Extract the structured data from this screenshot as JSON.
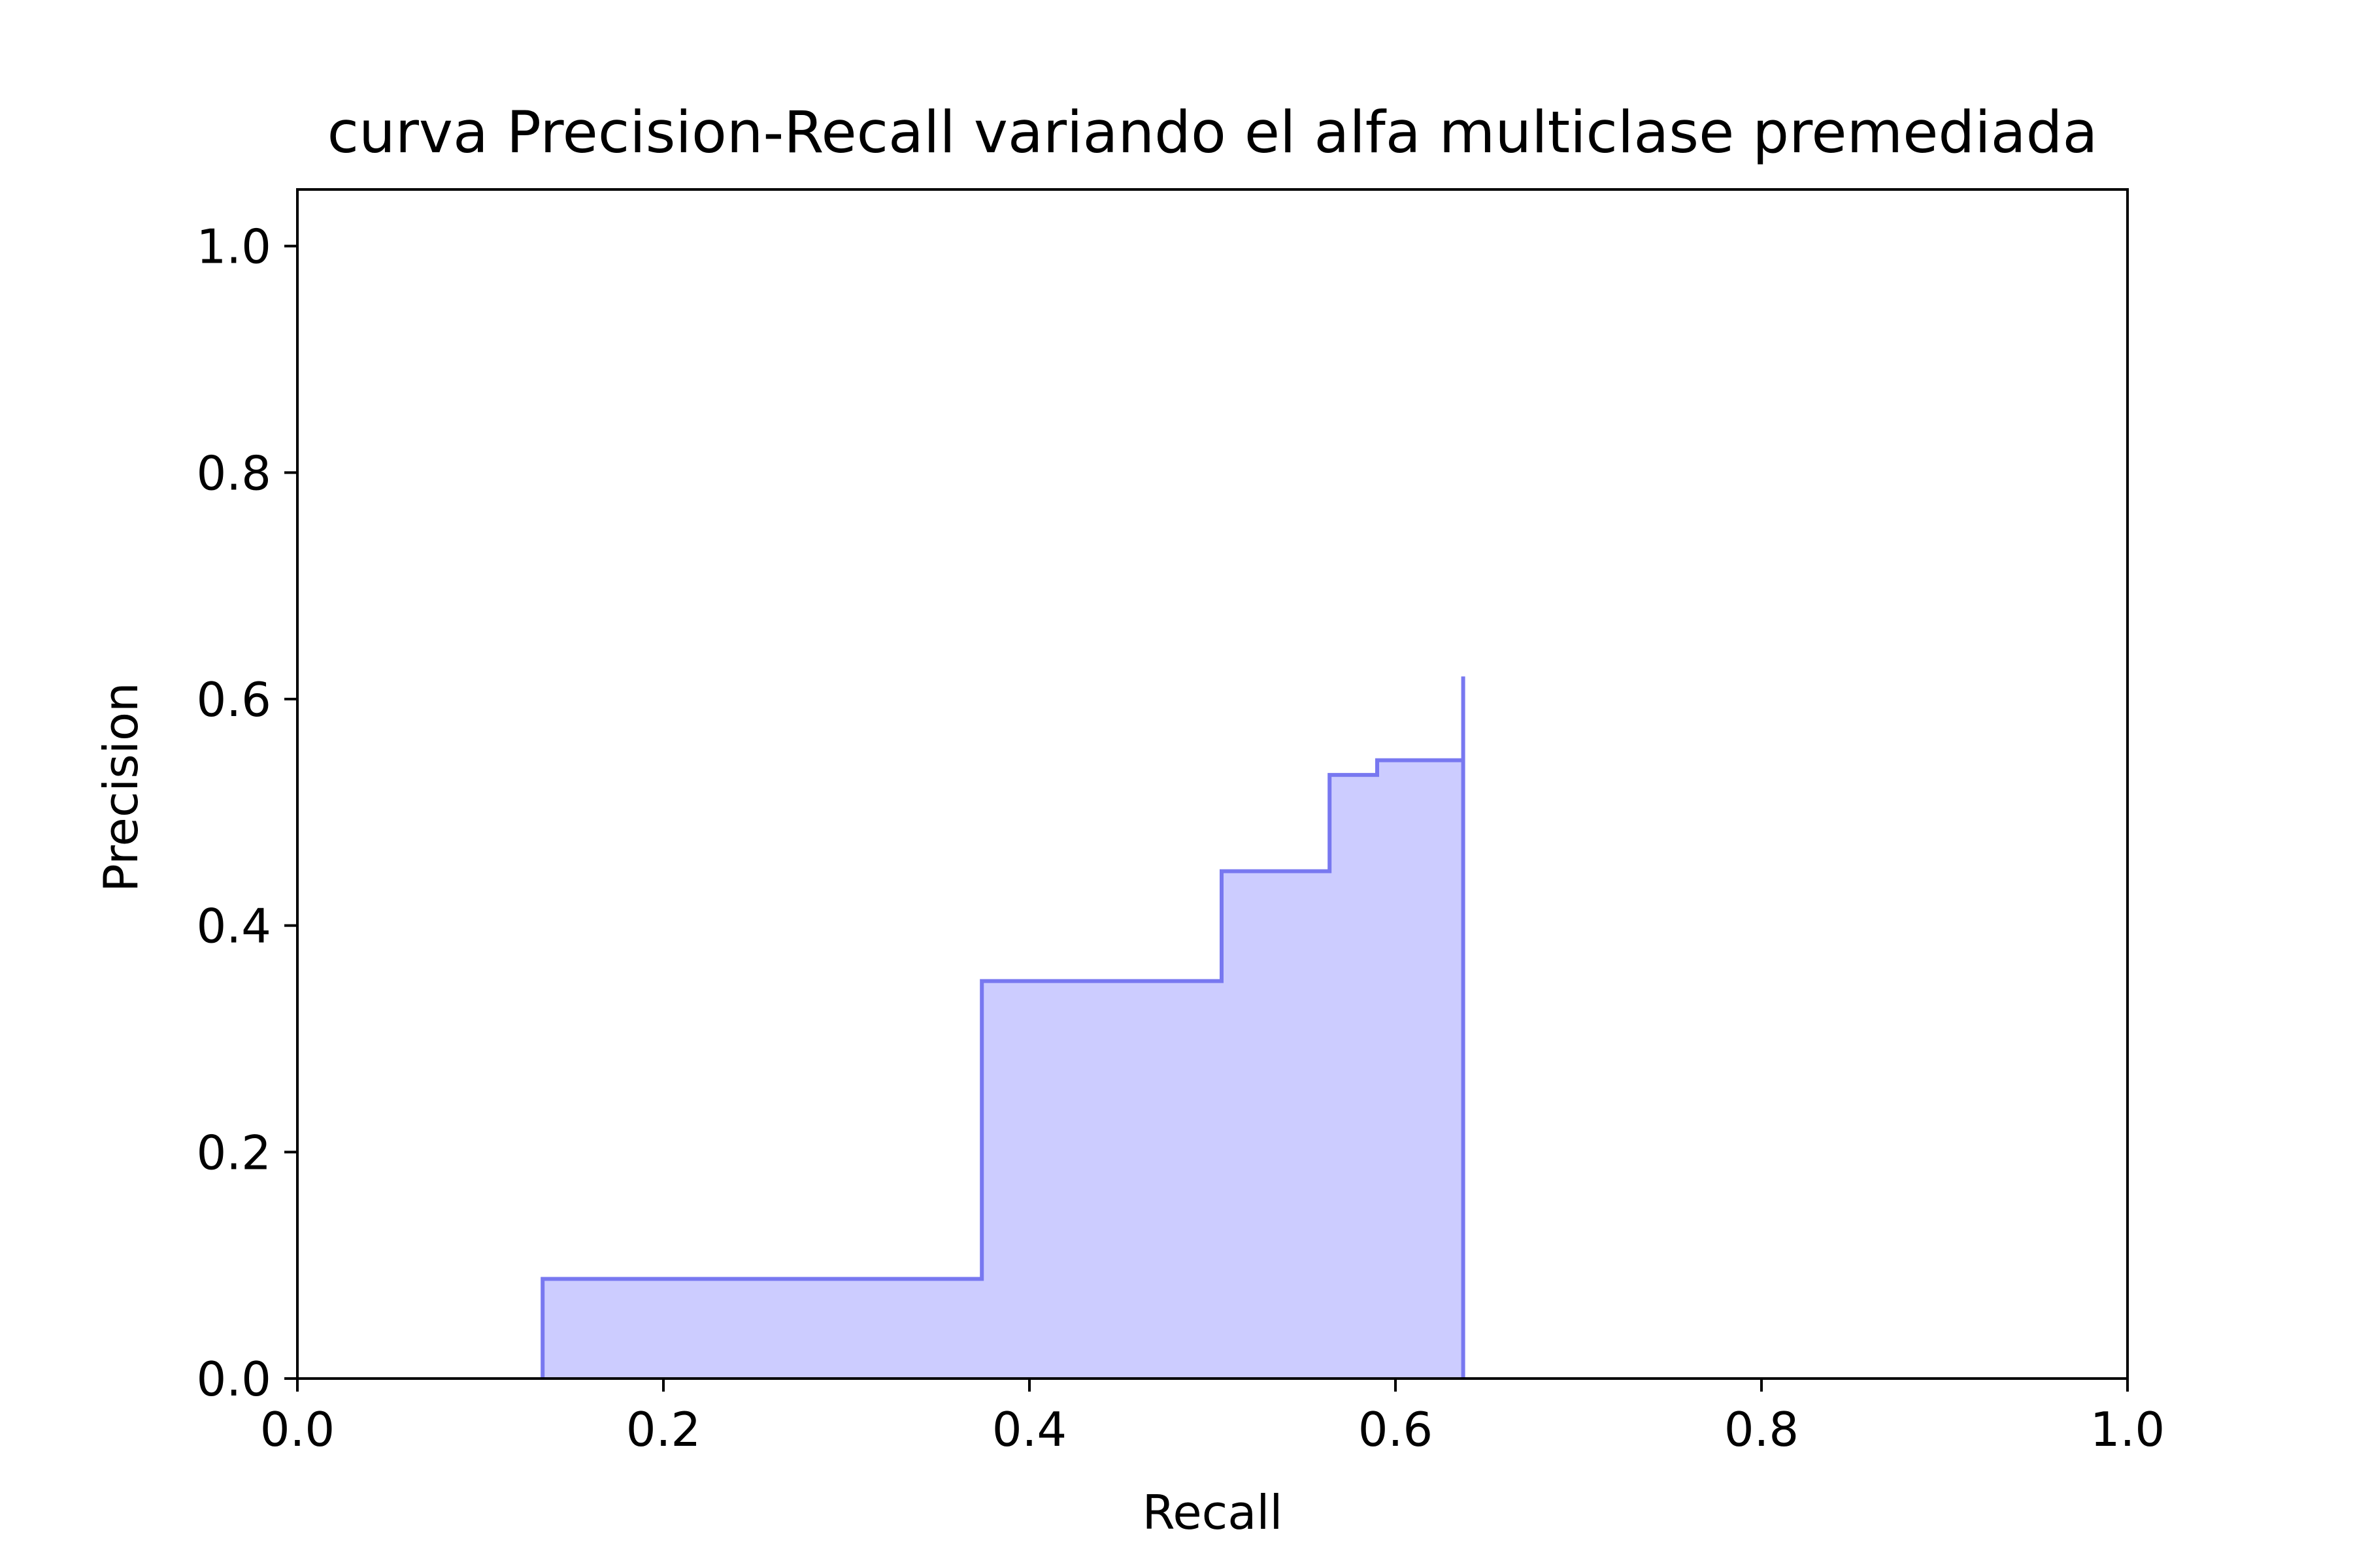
{
  "chart_data": {
    "type": "area",
    "title": "curva Precision-Recall variando el alfa multiclase premediada",
    "xlabel": "Recall",
    "ylabel": "Precision",
    "xlim": [
      0.0,
      1.0
    ],
    "ylim": [
      0.0,
      1.05
    ],
    "xticks": [
      "0.0",
      "0.2",
      "0.4",
      "0.6",
      "0.8",
      "1.0"
    ],
    "yticks": [
      "0.0",
      "0.2",
      "0.4",
      "0.6",
      "0.8",
      "1.0"
    ],
    "grid": false,
    "step": "post",
    "series": [
      {
        "recall": [
          0.134,
          0.134,
          0.374,
          0.374,
          0.505,
          0.505,
          0.564,
          0.564,
          0.59,
          0.59,
          0.637,
          0.637,
          0.637
        ],
        "precision": [
          0.0,
          0.088,
          0.088,
          0.351,
          0.351,
          0.448,
          0.448,
          0.533,
          0.533,
          0.546,
          0.546,
          0.62,
          0.0
        ],
        "line_color": "#7878f0",
        "fill_color": "#ccccff"
      }
    ]
  }
}
